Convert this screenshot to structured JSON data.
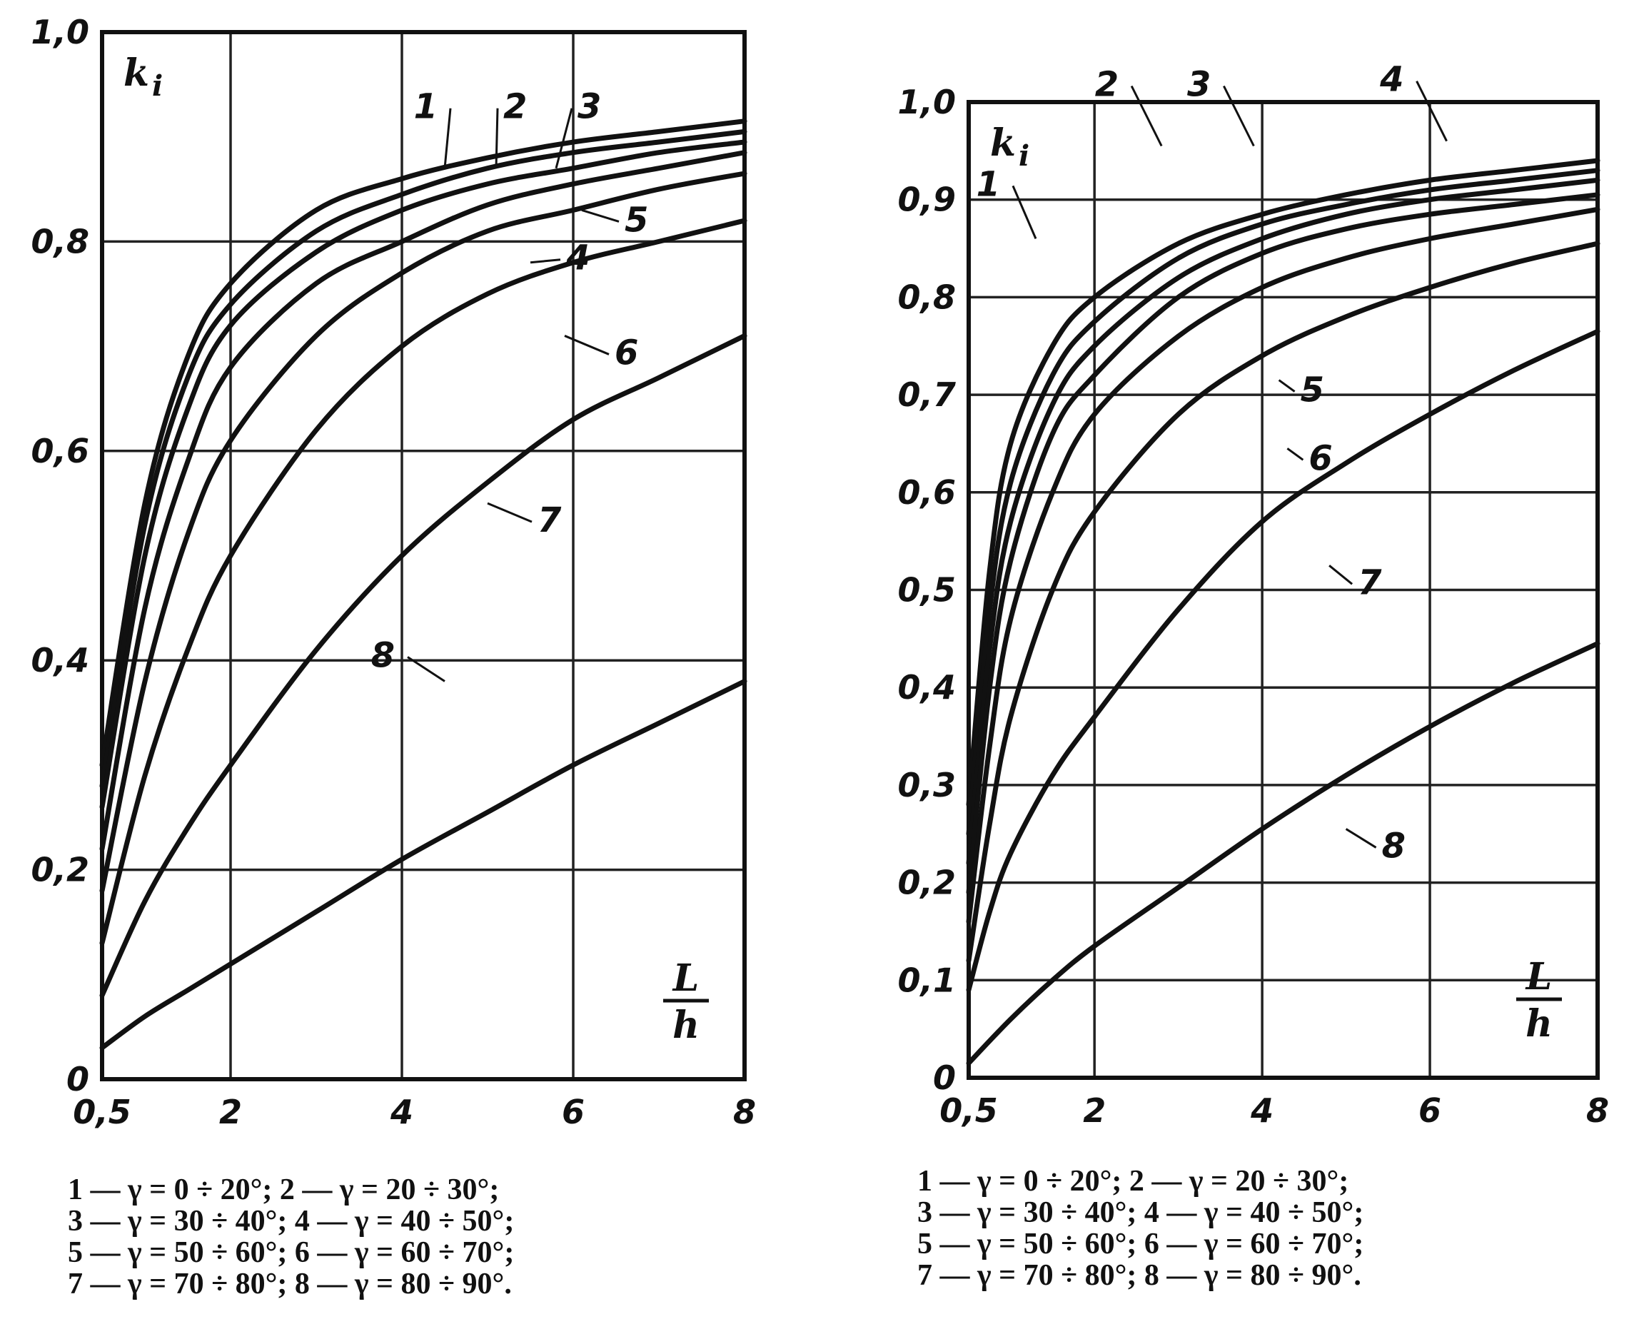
{
  "chart_data": [
    {
      "type": "line",
      "xlabel": "L/h",
      "xlabel_top": "L",
      "xlabel_bottom": "h",
      "ylabel": "ki",
      "ylabel_main": "k",
      "ylabel_sub": "i",
      "xlim": [
        0.5,
        8
      ],
      "ylim": [
        0,
        1.0
      ],
      "x_ticks": [
        0.5,
        2,
        4,
        6,
        8
      ],
      "x_tick_labels": [
        "0,5",
        "2",
        "4",
        "6",
        "8"
      ],
      "y_ticks": [
        0,
        0.2,
        0.4,
        0.6,
        0.8,
        1.0
      ],
      "y_tick_labels": [
        "0",
        "0,2",
        "0,4",
        "0,6",
        "0,8",
        "1,0"
      ],
      "grid": true,
      "series": [
        {
          "name": "1",
          "x": [
            0.5,
            1,
            1.5,
            2,
            3,
            4,
            5,
            6,
            7,
            8
          ],
          "y": [
            0.3,
            0.55,
            0.69,
            0.76,
            0.83,
            0.86,
            0.88,
            0.895,
            0.905,
            0.915
          ]
        },
        {
          "name": "2",
          "x": [
            0.5,
            1,
            1.5,
            2,
            3,
            4,
            5,
            6,
            7,
            8
          ],
          "y": [
            0.28,
            0.53,
            0.67,
            0.74,
            0.81,
            0.845,
            0.87,
            0.885,
            0.895,
            0.905
          ]
        },
        {
          "name": "3",
          "x": [
            0.5,
            1,
            1.5,
            2,
            3,
            4,
            5,
            6,
            7,
            8
          ],
          "y": [
            0.26,
            0.5,
            0.64,
            0.72,
            0.79,
            0.83,
            0.855,
            0.87,
            0.885,
            0.895
          ]
        },
        {
          "name": "4",
          "x": [
            0.5,
            1,
            1.5,
            2,
            3,
            4,
            5,
            6,
            7,
            8
          ],
          "y": [
            0.22,
            0.45,
            0.59,
            0.68,
            0.76,
            0.8,
            0.835,
            0.855,
            0.87,
            0.885
          ]
        },
        {
          "name": "5",
          "x": [
            0.5,
            1,
            1.5,
            2,
            3,
            4,
            5,
            6,
            7,
            8
          ],
          "y": [
            0.18,
            0.38,
            0.52,
            0.61,
            0.71,
            0.77,
            0.81,
            0.83,
            0.85,
            0.865
          ]
        },
        {
          "name": "6",
          "x": [
            0.5,
            1,
            1.5,
            2,
            3,
            4,
            5,
            6,
            7,
            8
          ],
          "y": [
            0.13,
            0.29,
            0.41,
            0.5,
            0.62,
            0.7,
            0.75,
            0.78,
            0.8,
            0.82
          ]
        },
        {
          "name": "7",
          "x": [
            0.5,
            1,
            1.5,
            2,
            3,
            4,
            5,
            6,
            7,
            8
          ],
          "y": [
            0.08,
            0.17,
            0.24,
            0.3,
            0.41,
            0.5,
            0.57,
            0.63,
            0.67,
            0.71
          ]
        },
        {
          "name": "8",
          "x": [
            0.5,
            1,
            1.5,
            2,
            3,
            4,
            5,
            6,
            7,
            8
          ],
          "y": [
            0.03,
            0.06,
            0.085,
            0.11,
            0.16,
            0.21,
            0.255,
            0.3,
            0.34,
            0.38
          ]
        }
      ],
      "curve_label_points": [
        {
          "x": 4.5,
          "y": 0.87,
          "label": "1"
        },
        {
          "x": 5.1,
          "y": 0.87,
          "label": "2"
        },
        {
          "x": 5.8,
          "y": 0.87,
          "label": "3"
        },
        {
          "x": 5.5,
          "y": 0.78,
          "label": "4"
        },
        {
          "x": 6.1,
          "y": 0.83,
          "label": "5"
        },
        {
          "x": 5.9,
          "y": 0.71,
          "label": "6"
        },
        {
          "x": 5.0,
          "y": 0.55,
          "label": "7"
        },
        {
          "x": 4.5,
          "y": 0.38,
          "label": "8"
        }
      ],
      "legend": [
        "1 — γ = 0 ÷ 20°;   2 — γ = 20 ÷ 30°;",
        "3 — γ = 30 ÷ 40°;   4 — γ = 40 ÷ 50°;",
        "5 — γ = 50 ÷ 60°;   6 — γ = 60 ÷ 70°;",
        "7 — γ = 70 ÷ 80°;   8 — γ = 80 ÷ 90°."
      ]
    },
    {
      "type": "line",
      "xlabel": "L/h",
      "xlabel_top": "L",
      "xlabel_bottom": "h",
      "ylabel": "ki",
      "ylabel_main": "k",
      "ylabel_sub": "i",
      "xlim": [
        0.5,
        8
      ],
      "ylim": [
        0,
        1.0
      ],
      "x_ticks": [
        0.5,
        2,
        4,
        6,
        8
      ],
      "x_tick_labels": [
        "0,5",
        "2",
        "4",
        "6",
        "8"
      ],
      "y_ticks": [
        0,
        0.1,
        0.2,
        0.3,
        0.4,
        0.5,
        0.6,
        0.7,
        0.8,
        0.9,
        1.0
      ],
      "y_tick_labels": [
        "0",
        "0,1",
        "0,2",
        "0,3",
        "0,4",
        "0,5",
        "0,6",
        "0,7",
        "0,8",
        "0,9",
        "1,0"
      ],
      "grid": true,
      "series": [
        {
          "name": "1",
          "x": [
            0.5,
            0.75,
            1,
            1.5,
            2,
            3,
            4,
            5,
            6,
            7,
            8
          ],
          "y": [
            0.28,
            0.52,
            0.65,
            0.75,
            0.8,
            0.855,
            0.885,
            0.905,
            0.92,
            0.93,
            0.94
          ]
        },
        {
          "name": "2",
          "x": [
            0.5,
            0.75,
            1,
            1.5,
            2,
            3,
            4,
            5,
            6,
            7,
            8
          ],
          "y": [
            0.25,
            0.48,
            0.61,
            0.72,
            0.775,
            0.84,
            0.875,
            0.895,
            0.91,
            0.92,
            0.93
          ]
        },
        {
          "name": "3",
          "x": [
            0.5,
            0.75,
            1,
            1.5,
            2,
            3,
            4,
            5,
            6,
            7,
            8
          ],
          "y": [
            0.22,
            0.44,
            0.57,
            0.69,
            0.75,
            0.82,
            0.86,
            0.885,
            0.9,
            0.91,
            0.92
          ]
        },
        {
          "name": "4",
          "x": [
            0.5,
            0.75,
            1,
            1.5,
            2,
            3,
            4,
            5,
            6,
            7,
            8
          ],
          "y": [
            0.19,
            0.4,
            0.53,
            0.66,
            0.72,
            0.8,
            0.845,
            0.87,
            0.885,
            0.895,
            0.905
          ]
        },
        {
          "name": "5",
          "x": [
            0.5,
            0.75,
            1,
            1.5,
            2,
            3,
            4,
            5,
            6,
            7,
            8
          ],
          "y": [
            0.16,
            0.34,
            0.47,
            0.6,
            0.68,
            0.76,
            0.81,
            0.84,
            0.86,
            0.875,
            0.89
          ]
        },
        {
          "name": "6",
          "x": [
            0.5,
            0.75,
            1,
            1.5,
            2,
            3,
            4,
            5,
            6,
            7,
            8
          ],
          "y": [
            0.12,
            0.26,
            0.37,
            0.5,
            0.58,
            0.68,
            0.74,
            0.78,
            0.81,
            0.835,
            0.855
          ]
        },
        {
          "name": "7",
          "x": [
            0.5,
            0.75,
            1,
            1.5,
            2,
            3,
            4,
            5,
            6,
            7,
            8
          ],
          "y": [
            0.09,
            0.17,
            0.23,
            0.31,
            0.37,
            0.48,
            0.57,
            0.63,
            0.68,
            0.725,
            0.765
          ]
        },
        {
          "name": "8",
          "x": [
            0.5,
            1,
            1.5,
            2,
            3,
            4,
            5,
            6,
            7,
            8
          ],
          "y": [
            0.015,
            0.06,
            0.1,
            0.135,
            0.195,
            0.255,
            0.31,
            0.36,
            0.405,
            0.445
          ]
        }
      ],
      "curve_label_points": [
        {
          "x": 1.3,
          "y": 0.86,
          "label": "1"
        },
        {
          "x": 2.8,
          "y": 0.955,
          "label": "2"
        },
        {
          "x": 3.9,
          "y": 0.955,
          "label": "3"
        },
        {
          "x": 6.2,
          "y": 0.96,
          "label": "4"
        },
        {
          "x": 4.2,
          "y": 0.715,
          "label": "5"
        },
        {
          "x": 4.3,
          "y": 0.645,
          "label": "6"
        },
        {
          "x": 4.8,
          "y": 0.525,
          "label": "7"
        },
        {
          "x": 5.0,
          "y": 0.255,
          "label": "8"
        }
      ],
      "legend": [
        "1 — γ = 0 ÷ 20°;   2 — γ = 20 ÷ 30°;",
        "3 — γ = 30 ÷ 40°;   4 — γ = 40 ÷ 50°;",
        "5 — γ = 50 ÷ 60°;   6 — γ = 60 ÷ 70°;",
        "7 — γ = 70 ÷ 80°;   8 — γ = 80 ÷ 90°."
      ]
    }
  ]
}
